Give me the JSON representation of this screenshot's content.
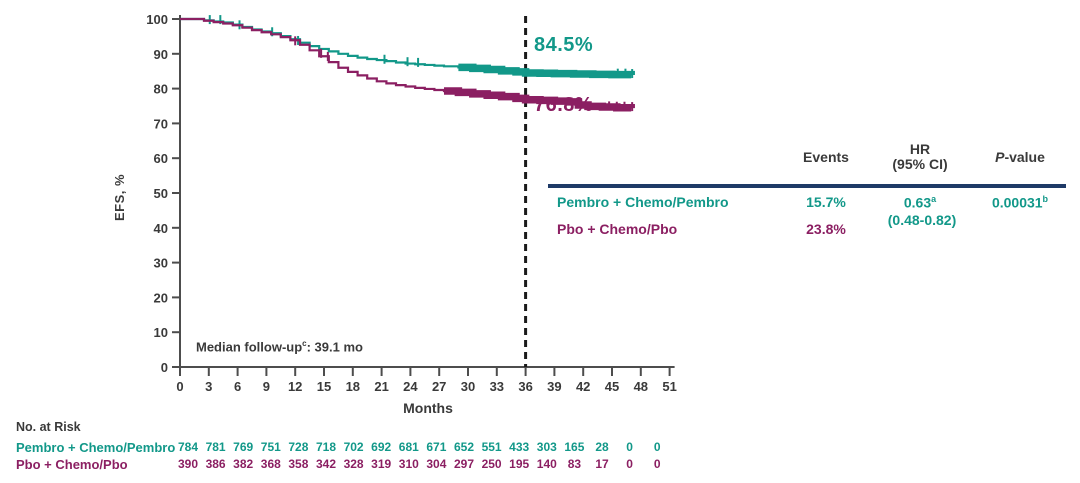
{
  "colors": {
    "pembro_teal": "#129889",
    "pbo_maroon": "#8b1f62",
    "navy_rule": "#1e3a67",
    "axis_gray": "#4d4d4d",
    "text_dark": "#3a3a3a",
    "ref_line_black": "#1a1a1a"
  },
  "chart_data": {
    "type": "line",
    "subtype": "kaplan-meier-step",
    "title": "",
    "xlabel": "Months",
    "ylabel": "EFS, %",
    "xlim": [
      0,
      51
    ],
    "ylim": [
      0,
      100
    ],
    "grid": false,
    "xticks": [
      0,
      3,
      6,
      9,
      12,
      15,
      18,
      21,
      24,
      27,
      30,
      33,
      36,
      39,
      42,
      45,
      48,
      51
    ],
    "yticks": [
      0,
      10,
      20,
      30,
      40,
      50,
      60,
      70,
      80,
      90,
      100
    ],
    "reference_line_month": 36,
    "annotation": {
      "prefix": "Median follow-up",
      "sup": "c",
      "suffix": ": 39.1 mo"
    },
    "series": [
      {
        "name": "Pembro + Chemo/Pembro",
        "color": "#129889",
        "value_label": "84.5%",
        "points": [
          [
            0,
            100
          ],
          [
            1.5,
            100
          ],
          [
            2.5,
            99.6
          ],
          [
            3.5,
            99.3
          ],
          [
            4.5,
            99
          ],
          [
            5.5,
            98.4
          ],
          [
            6.5,
            97.7
          ],
          [
            7.5,
            97
          ],
          [
            8.5,
            96.4
          ],
          [
            9.5,
            95.9
          ],
          [
            10.5,
            95.1
          ],
          [
            11.5,
            94.2
          ],
          [
            12.5,
            93.2
          ],
          [
            13.5,
            92.2
          ],
          [
            14.5,
            91.4
          ],
          [
            15.5,
            90.7
          ],
          [
            16.5,
            90
          ],
          [
            17.5,
            89.4
          ],
          [
            18.5,
            88.9
          ],
          [
            19.5,
            88.5
          ],
          [
            20.5,
            88.2
          ],
          [
            21.5,
            87.9
          ],
          [
            22.5,
            87.5
          ],
          [
            23.5,
            87.2
          ],
          [
            24.5,
            87
          ],
          [
            25.5,
            86.8
          ],
          [
            26.5,
            86.6
          ],
          [
            27.5,
            86.4
          ],
          [
            29,
            86.1
          ],
          [
            30.5,
            85.8
          ],
          [
            32,
            85.5
          ],
          [
            33.5,
            85.1
          ],
          [
            35,
            84.8
          ],
          [
            36,
            84.5
          ],
          [
            37.5,
            84.4
          ],
          [
            39,
            84.3
          ],
          [
            41,
            84.2
          ],
          [
            43,
            84.1
          ],
          [
            45,
            84
          ],
          [
            47,
            83.9
          ]
        ],
        "censor_band": [
          29,
          47
        ],
        "censor_ticks": [
          [
            3.1,
            99.4
          ],
          [
            4.2,
            99.4
          ],
          [
            6.2,
            97.9
          ],
          [
            9.6,
            95.9
          ],
          [
            12.3,
            93.4
          ],
          [
            21.3,
            88
          ],
          [
            23.7,
            87.3
          ],
          [
            24.8,
            87.1
          ],
          [
            45.6,
            84
          ],
          [
            46.4,
            84
          ],
          [
            47.1,
            83.9
          ]
        ]
      },
      {
        "name": "Pbo + Chemo/Pbo",
        "color": "#8b1f62",
        "value_label": "76.8%",
        "points": [
          [
            0,
            100
          ],
          [
            1.5,
            100
          ],
          [
            2.5,
            99.5
          ],
          [
            3.5,
            99.1
          ],
          [
            4.5,
            98.7
          ],
          [
            5.5,
            98.2
          ],
          [
            6.5,
            97.5
          ],
          [
            7.5,
            96.8
          ],
          [
            8.5,
            96.2
          ],
          [
            9.5,
            95.6
          ],
          [
            10.5,
            94.8
          ],
          [
            11.5,
            93.9
          ],
          [
            12.5,
            92.6
          ],
          [
            13.5,
            91
          ],
          [
            14.5,
            89.3
          ],
          [
            15.5,
            87.6
          ],
          [
            16.5,
            86
          ],
          [
            17.5,
            84.8
          ],
          [
            18.5,
            83.8
          ],
          [
            19.5,
            82.9
          ],
          [
            20.5,
            82.1
          ],
          [
            21.5,
            81.5
          ],
          [
            22.5,
            81
          ],
          [
            23.5,
            80.6
          ],
          [
            24.5,
            80.2
          ],
          [
            25.5,
            79.9
          ],
          [
            26.5,
            79.6
          ],
          [
            27.5,
            79.3
          ],
          [
            29,
            78.9
          ],
          [
            30.5,
            78.5
          ],
          [
            32,
            78.1
          ],
          [
            33.5,
            77.7
          ],
          [
            35,
            77.2
          ],
          [
            36,
            76.8
          ],
          [
            37.5,
            76.6
          ],
          [
            39,
            76.4
          ],
          [
            40.5,
            76.2
          ],
          [
            41.5,
            75.3
          ],
          [
            42.5,
            74.9
          ],
          [
            44,
            74.7
          ],
          [
            45.5,
            74.5
          ],
          [
            47,
            74.4
          ]
        ],
        "censor_band": [
          27,
          47
        ],
        "censor_ticks": [
          [
            12,
            93.3
          ],
          [
            14.7,
            89.7
          ],
          [
            15.4,
            88.8
          ],
          [
            44.7,
            74.6
          ],
          [
            45.5,
            74.5
          ],
          [
            46.3,
            74.5
          ],
          [
            47.1,
            74.4
          ]
        ]
      }
    ]
  },
  "risk_table": {
    "title": "No. at Risk",
    "rows": [
      {
        "label": "Pembro + Chemo/Pembro",
        "color": "#129889",
        "values": [
          784,
          781,
          769,
          751,
          728,
          718,
          702,
          692,
          681,
          671,
          652,
          551,
          433,
          303,
          165,
          28,
          0,
          0
        ]
      },
      {
        "label": "Pbo + Chemo/Pbo",
        "color": "#8b1f62",
        "values": [
          390,
          386,
          382,
          368,
          358,
          342,
          328,
          319,
          310,
          304,
          297,
          250,
          195,
          140,
          83,
          17,
          0,
          0
        ]
      }
    ]
  },
  "stats_table": {
    "headers": {
      "events": "Events",
      "hr_line1": "HR",
      "hr_line2": "(95% CI)",
      "p_italic": "P",
      "p_rest": "-value"
    },
    "rows": [
      {
        "label": "Pembro + Chemo/Pembro",
        "events": "15.7%"
      },
      {
        "label": "Pbo + Chemo/Pbo",
        "events": "23.8%"
      }
    ],
    "hr_value": "0.63",
    "hr_sup": "a",
    "hr_ci": "(0.48-0.82)",
    "p_value": "0.00031",
    "p_sup": "b"
  }
}
